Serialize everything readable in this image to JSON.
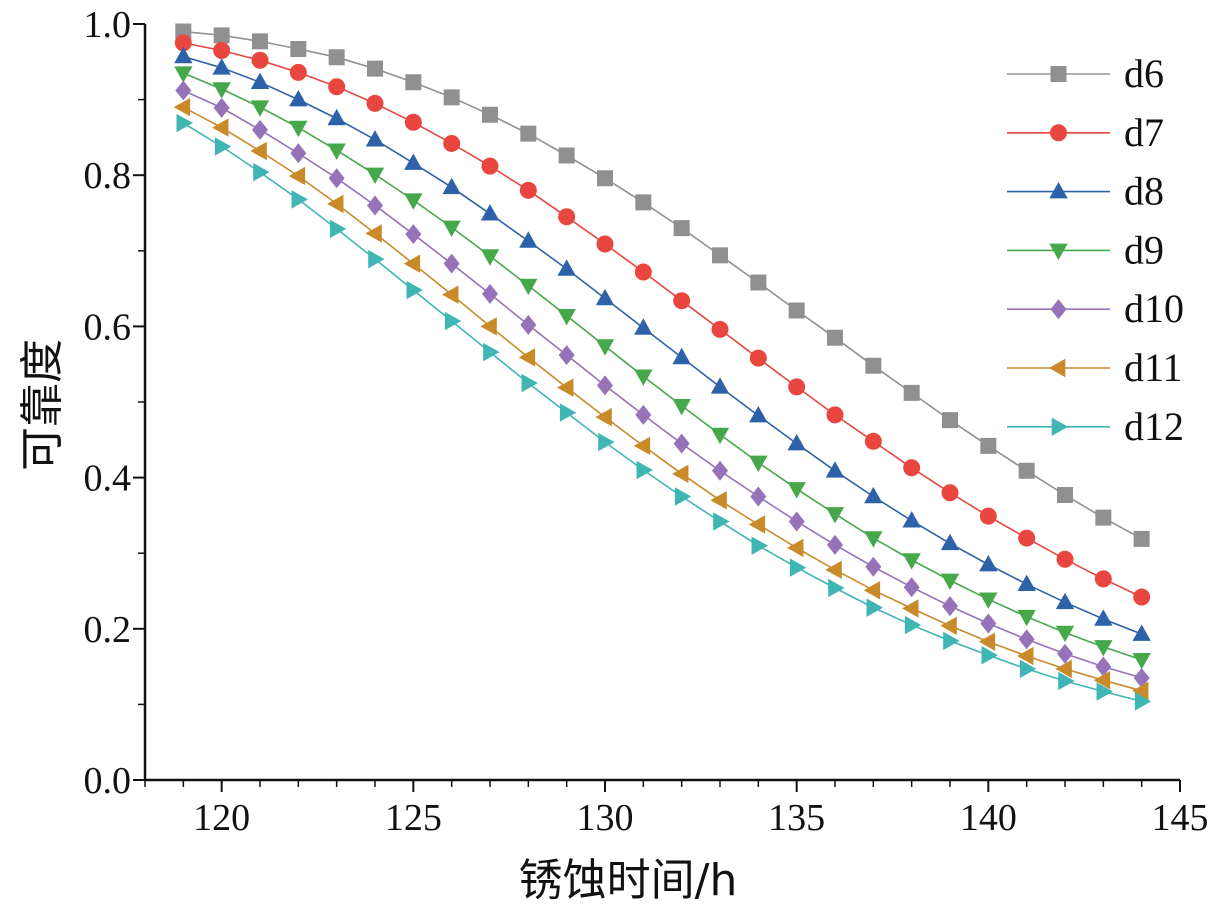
{
  "chart_data": {
    "type": "line",
    "title": "",
    "xlabel": "锈蚀时间/h",
    "ylabel": "可靠度",
    "xlim": [
      118,
      145
    ],
    "ylim": [
      0,
      1
    ],
    "xticks": [
      120,
      125,
      130,
      135,
      140,
      145
    ],
    "xtick_labels": [
      "120",
      "125",
      "130",
      "135",
      "140",
      "145"
    ],
    "yticks": [
      0,
      0.2,
      0.4,
      0.6,
      0.8,
      1.0
    ],
    "ytick_labels": [
      "0.0",
      "0.2",
      "0.4",
      "0.6",
      "0.8",
      "1.0"
    ],
    "grid": false,
    "legend_position": "top-right",
    "x": [
      119,
      120,
      121,
      122,
      123,
      124,
      125,
      126,
      127,
      128,
      129,
      130,
      131,
      132,
      133,
      134,
      135,
      136,
      137,
      138,
      139,
      140,
      141,
      142,
      143,
      144
    ],
    "series": [
      {
        "name": "d6",
        "color": "#909090",
        "marker": "square",
        "values": [
          0.99,
          0.985,
          0.977,
          0.967,
          0.956,
          0.941,
          0.923,
          0.903,
          0.88,
          0.855,
          0.826,
          0.796,
          0.764,
          0.73,
          0.694,
          0.658,
          0.621,
          0.585,
          0.548,
          0.512,
          0.476,
          0.442,
          0.409,
          0.377,
          0.347,
          0.319
        ]
      },
      {
        "name": "d7",
        "color": "#e8463f",
        "marker": "circle",
        "values": [
          0.975,
          0.965,
          0.952,
          0.936,
          0.917,
          0.895,
          0.87,
          0.842,
          0.812,
          0.78,
          0.745,
          0.709,
          0.672,
          0.634,
          0.596,
          0.558,
          0.52,
          0.483,
          0.448,
          0.413,
          0.38,
          0.349,
          0.32,
          0.292,
          0.266,
          0.242
        ]
      },
      {
        "name": "d8",
        "color": "#2e62a8",
        "marker": "triangle-up",
        "values": [
          0.957,
          0.942,
          0.923,
          0.9,
          0.875,
          0.847,
          0.816,
          0.784,
          0.749,
          0.713,
          0.676,
          0.637,
          0.598,
          0.559,
          0.52,
          0.482,
          0.445,
          0.409,
          0.375,
          0.343,
          0.313,
          0.285,
          0.259,
          0.235,
          0.213,
          0.193
        ]
      },
      {
        "name": "d9",
        "color": "#47a84b",
        "marker": "triangle-down",
        "values": [
          0.935,
          0.914,
          0.89,
          0.863,
          0.833,
          0.801,
          0.767,
          0.731,
          0.693,
          0.654,
          0.614,
          0.574,
          0.534,
          0.495,
          0.457,
          0.42,
          0.385,
          0.352,
          0.32,
          0.291,
          0.264,
          0.239,
          0.216,
          0.195,
          0.176,
          0.159
        ]
      },
      {
        "name": "d10",
        "color": "#9673b8",
        "marker": "diamond",
        "values": [
          0.912,
          0.889,
          0.86,
          0.829,
          0.796,
          0.76,
          0.722,
          0.683,
          0.643,
          0.602,
          0.562,
          0.522,
          0.483,
          0.445,
          0.409,
          0.375,
          0.342,
          0.311,
          0.282,
          0.255,
          0.23,
          0.207,
          0.186,
          0.167,
          0.15,
          0.135
        ]
      },
      {
        "name": "d11",
        "color": "#c98a2a",
        "marker": "triangle-left",
        "values": [
          0.89,
          0.863,
          0.832,
          0.799,
          0.762,
          0.723,
          0.683,
          0.642,
          0.6,
          0.559,
          0.519,
          0.48,
          0.442,
          0.405,
          0.37,
          0.338,
          0.307,
          0.278,
          0.251,
          0.227,
          0.204,
          0.183,
          0.164,
          0.147,
          0.132,
          0.118
        ]
      },
      {
        "name": "d12",
        "color": "#3fb6b4",
        "marker": "triangle-right",
        "values": [
          0.869,
          0.838,
          0.804,
          0.768,
          0.729,
          0.689,
          0.648,
          0.607,
          0.566,
          0.525,
          0.486,
          0.447,
          0.41,
          0.375,
          0.342,
          0.31,
          0.281,
          0.254,
          0.228,
          0.205,
          0.184,
          0.165,
          0.147,
          0.131,
          0.117,
          0.104
        ]
      }
    ]
  }
}
